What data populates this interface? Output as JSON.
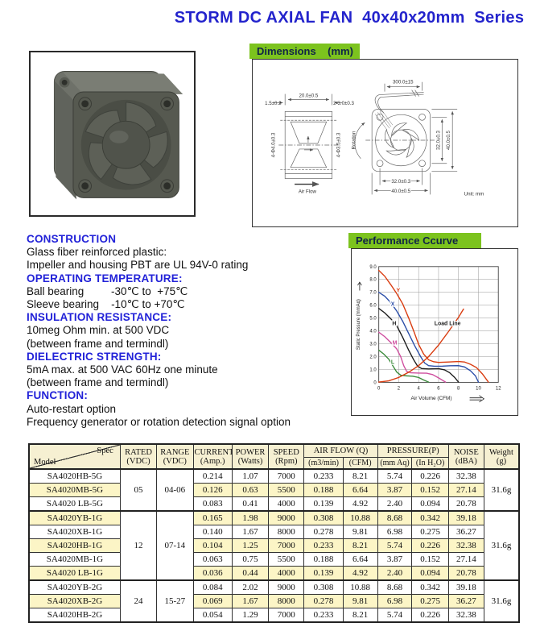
{
  "page": {
    "title": "STORM DC AXIAL FAN  40x40x20mm  Series"
  },
  "sections": {
    "dimensions": {
      "header": "Dimensions    (mm)",
      "labels": {
        "top_width": "20.0±0.5",
        "flange": "1.5±0.2",
        "boss": "2-3.0±0.3",
        "holes_left": "4-Φ4.0±0.3",
        "holes_right": "4-Φ3.5±0.3",
        "air_flow": "Air Flow",
        "rotation": "Rotation",
        "wire_length": "300.0±15",
        "pitch_v": "32.0±0.3",
        "height_v": "40.0±0.5",
        "pitch_h": "32.0±0.3",
        "width_h": "40.0±0.5",
        "unit": "Unit: mm"
      }
    },
    "specs": [
      {
        "heading": "CONSTRUCTION",
        "lines": [
          "Glass fiber reinforced plastic:",
          "Impeller and housing PBT are UL 94V-0 rating"
        ]
      },
      {
        "heading": "OPERATING TEMPERATURE:",
        "lines": [
          "Ball bearing         -30℃ to  +75℃",
          "Sleeve bearing    -10℃ to +70℃"
        ]
      },
      {
        "heading": "INSULATION RESISTANCE:",
        "lines": [
          "10meg Ohm min. at 500 VDC",
          "(between frame and termindl)"
        ]
      },
      {
        "heading": "DIELECTRIC STRENGTH:",
        "lines": [
          "5mA max. at 500 VAC 60Hz one minute",
          "(between frame and termindl)"
        ]
      },
      {
        "heading": "FUNCTION:",
        "lines": [
          "Auto-restart option",
          "Frequency generator or rotation detection signal option"
        ]
      }
    ],
    "performance": {
      "header": "Performance Ccurve"
    }
  },
  "chart_data": {
    "type": "line",
    "title": "Performance Ccurve",
    "xlabel": "Air Volume (CFM)",
    "ylabel": "Static Pressure (mmAq)",
    "xlim": [
      0,
      12
    ],
    "ylim": [
      0,
      9
    ],
    "xticks": [
      0,
      2,
      4,
      6,
      8,
      10,
      12
    ],
    "yticks": [
      0,
      1,
      2,
      3,
      4,
      5,
      6,
      7,
      8,
      9
    ],
    "ytick_labels": [
      "0",
      "1.0",
      "2.0",
      "3.0",
      "4.0",
      "5.0",
      "6.0",
      "7.0",
      "8.0",
      "9.0"
    ],
    "grid": true,
    "series": [
      {
        "name": "Y",
        "color": "#d93c10",
        "label_at": [
          1.95,
          7.0
        ],
        "points": [
          [
            0,
            8.7
          ],
          [
            0.6,
            8.25
          ],
          [
            1.2,
            7.6
          ],
          [
            1.8,
            6.9
          ],
          [
            2.4,
            6.1
          ],
          [
            3,
            5.0
          ],
          [
            3.5,
            4.0
          ],
          [
            4,
            2.95
          ],
          [
            4.5,
            2.2
          ],
          [
            5,
            1.75
          ],
          [
            5.5,
            1.6
          ],
          [
            6,
            1.55
          ],
          [
            7,
            1.58
          ],
          [
            8,
            1.62
          ],
          [
            8.6,
            1.58
          ],
          [
            9.2,
            1.4
          ],
          [
            9.8,
            1.15
          ],
          [
            10.4,
            0.65
          ],
          [
            11,
            0.02
          ]
        ]
      },
      {
        "name": "X",
        "color": "#2b4ea8",
        "label_at": [
          1.4,
          5.95
        ],
        "points": [
          [
            0,
            7.0
          ],
          [
            0.6,
            6.7
          ],
          [
            1.2,
            6.2
          ],
          [
            1.8,
            5.55
          ],
          [
            2.4,
            4.75
          ],
          [
            3,
            3.8
          ],
          [
            3.6,
            2.85
          ],
          [
            4.2,
            2.0
          ],
          [
            4.6,
            1.5
          ],
          [
            5,
            1.3
          ],
          [
            5.6,
            1.25
          ],
          [
            6.4,
            1.26
          ],
          [
            7.2,
            1.29
          ],
          [
            8,
            1.3
          ],
          [
            8.6,
            1.2
          ],
          [
            9.2,
            0.9
          ],
          [
            9.7,
            0.5
          ],
          [
            10,
            0.02
          ]
        ]
      },
      {
        "name": "H",
        "color": "#1c1c1c",
        "label_at": [
          1.55,
          4.45
        ],
        "points": [
          [
            0,
            5.75
          ],
          [
            0.6,
            5.4
          ],
          [
            1.2,
            4.95
          ],
          [
            1.8,
            4.4
          ],
          [
            2.4,
            3.5
          ],
          [
            3,
            2.5
          ],
          [
            3.5,
            1.75
          ],
          [
            3.9,
            1.25
          ],
          [
            4.3,
            1.07
          ],
          [
            5,
            1.04
          ],
          [
            6,
            1.06
          ],
          [
            6.6,
            0.97
          ],
          [
            7.1,
            0.75
          ],
          [
            7.6,
            0.4
          ],
          [
            8,
            0.02
          ]
        ]
      },
      {
        "name": "M",
        "color": "#cf4f9f",
        "label_at": [
          1.6,
          2.95
        ],
        "points": [
          [
            0,
            3.9
          ],
          [
            0.6,
            3.55
          ],
          [
            1.2,
            3.1
          ],
          [
            1.8,
            2.6
          ],
          [
            2.2,
            2.0
          ],
          [
            2.5,
            1.3
          ],
          [
            2.8,
            0.85
          ],
          [
            3.2,
            0.74
          ],
          [
            4,
            0.72
          ],
          [
            4.8,
            0.71
          ],
          [
            5.4,
            0.6
          ],
          [
            6,
            0.35
          ],
          [
            6.7,
            0.02
          ]
        ]
      },
      {
        "name": "L",
        "color": "#3a8a3a",
        "label_at": [
          1.4,
          1.45
        ],
        "points": [
          [
            0,
            2.5
          ],
          [
            0.5,
            2.2
          ],
          [
            1,
            1.8
          ],
          [
            1.4,
            1.3
          ],
          [
            1.8,
            0.8
          ],
          [
            2.2,
            0.55
          ],
          [
            2.8,
            0.5
          ],
          [
            3.4,
            0.48
          ],
          [
            4,
            0.38
          ],
          [
            4.5,
            0.18
          ],
          [
            5,
            0.02
          ]
        ]
      },
      {
        "name": "Load Line",
        "color": "#d93c10",
        "label_at": [
          6.9,
          4.45
        ],
        "points": [
          [
            0,
            0.02
          ],
          [
            1,
            0.12
          ],
          [
            2,
            0.38
          ],
          [
            3,
            0.78
          ],
          [
            4,
            1.3
          ],
          [
            5,
            2.0
          ],
          [
            6,
            2.9
          ],
          [
            7,
            3.95
          ],
          [
            8,
            5.05
          ],
          [
            8.5,
            5.7
          ]
        ]
      }
    ]
  },
  "table": {
    "corner": {
      "top": "Spec",
      "bottom": "Model"
    },
    "columns": [
      {
        "key": "rated",
        "label": "RATED\n(VDC)"
      },
      {
        "key": "range",
        "label": "RANGE\n(VDC)"
      },
      {
        "key": "current",
        "label": "CURRENT\n(Amp.)"
      },
      {
        "key": "power",
        "label": "POWER\n(Watts)"
      },
      {
        "key": "speed",
        "label": "SPEED\n(Rpm)"
      },
      {
        "key": "airflow",
        "label": "AIR FLOW  (Q)",
        "children": [
          {
            "key": "m3min",
            "label": "(m3/min)"
          },
          {
            "key": "cfm",
            "label": "(CFM)"
          }
        ]
      },
      {
        "key": "pressure",
        "label": "PRESSURE(P)",
        "children": [
          {
            "key": "mmaq",
            "label": "(mm Aq)"
          },
          {
            "key": "inh2o",
            "label": "(In H₂O)"
          }
        ]
      },
      {
        "key": "noise",
        "label": "NOISE\n(dBA)"
      },
      {
        "key": "weight",
        "label": "Weight\n(g)"
      }
    ],
    "groups": [
      {
        "rated": "05",
        "range": "04-06",
        "weight": "31.6g",
        "rows": [
          {
            "model": "SA4020HB-5G",
            "values": [
              "0.214",
              "1.07",
              "7000",
              "0.233",
              "8.21",
              "5.74",
              "0.226",
              "32.38"
            ]
          },
          {
            "model": "SA4020MB-5G",
            "values": [
              "0.126",
              "0.63",
              "5500",
              "0.188",
              "6.64",
              "3.87",
              "0.152",
              "27.14"
            ]
          },
          {
            "model": "SA4020 LB-5G",
            "values": [
              "0.083",
              "0.41",
              "4000",
              "0.139",
              "4.92",
              "2.40",
              "0.094",
              "20.78"
            ]
          }
        ]
      },
      {
        "rated": "12",
        "range": "07-14",
        "weight": "31.6g",
        "rows": [
          {
            "model": "SA4020YB-1G",
            "values": [
              "0.165",
              "1.98",
              "9000",
              "0.308",
              "10.88",
              "8.68",
              "0.342",
              "39.18"
            ]
          },
          {
            "model": "SA4020XB-1G",
            "values": [
              "0.140",
              "1.67",
              "8000",
              "0.278",
              "9.81",
              "6.98",
              "0.275",
              "36.27"
            ]
          },
          {
            "model": "SA4020HB-1G",
            "values": [
              "0.104",
              "1.25",
              "7000",
              "0.233",
              "8.21",
              "5.74",
              "0.226",
              "32.38"
            ]
          },
          {
            "model": "SA4020MB-1G",
            "values": [
              "0.063",
              "0.75",
              "5500",
              "0.188",
              "6.64",
              "3.87",
              "0.152",
              "27.14"
            ]
          },
          {
            "model": "SA4020 LB-1G",
            "values": [
              "0.036",
              "0.44",
              "4000",
              "0.139",
              "4.92",
              "2.40",
              "0.094",
              "20.78"
            ]
          }
        ]
      },
      {
        "rated": "24",
        "range": "15-27",
        "weight": "31.6g",
        "rows": [
          {
            "model": "SA4020YB-2G",
            "values": [
              "0.084",
              "2.02",
              "9000",
              "0.308",
              "10.88",
              "8.68",
              "0.342",
              "39.18"
            ]
          },
          {
            "model": "SA4020XB-2G",
            "values": [
              "0.069",
              "1.67",
              "8000",
              "0.278",
              "9.81",
              "6.98",
              "0.275",
              "36.27"
            ]
          },
          {
            "model": "SA4020HB-2G",
            "values": [
              "0.054",
              "1.29",
              "7000",
              "0.233",
              "8.21",
              "5.74",
              "0.226",
              "32.38"
            ]
          }
        ]
      }
    ]
  }
}
